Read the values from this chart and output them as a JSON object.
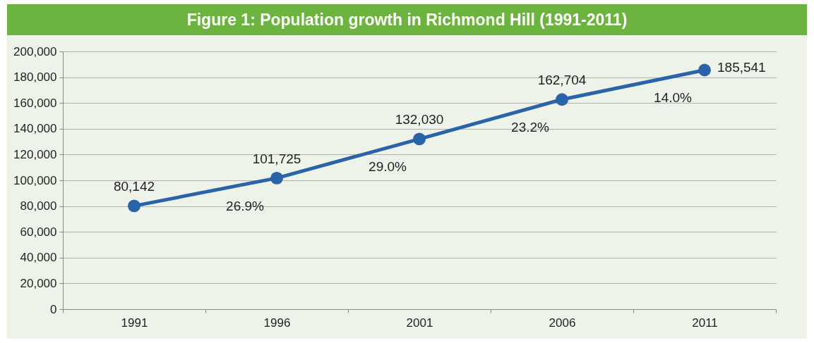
{
  "chart_data": {
    "type": "line",
    "title": "Figure 1: Population growth in Richmond Hill (1991-2011)",
    "categories": [
      "1991",
      "1996",
      "2001",
      "2006",
      "2011"
    ],
    "values": [
      80142,
      101725,
      132030,
      162704,
      185541
    ],
    "value_labels": [
      "80,142",
      "101,725",
      "132,030",
      "162,704",
      "185,541"
    ],
    "color": "#2a63a8",
    "marker": "circle",
    "line_style": "solid",
    "ylim": [
      0,
      200000
    ],
    "yticks": [
      0,
      {
        "value": 20000,
        "label": "20,000"
      },
      {
        "value": 40000,
        "label": "40,000"
      },
      {
        "value": 60000,
        "label": "60,000"
      },
      {
        "value": 80000,
        "label": "80,000"
      },
      {
        "value": 100000,
        "label": "100,000"
      },
      {
        "value": 120000,
        "label": "120,000"
      },
      {
        "value": 140000,
        "label": "140,000"
      },
      {
        "value": 160000,
        "label": "160,000"
      },
      {
        "value": 180000,
        "label": "180,000"
      },
      {
        "value": 200000,
        "label": "200,000"
      }
    ],
    "grid": "y",
    "annotations": [
      "26.9%",
      "29.0%",
      "23.2%",
      "14.0%"
    ]
  }
}
